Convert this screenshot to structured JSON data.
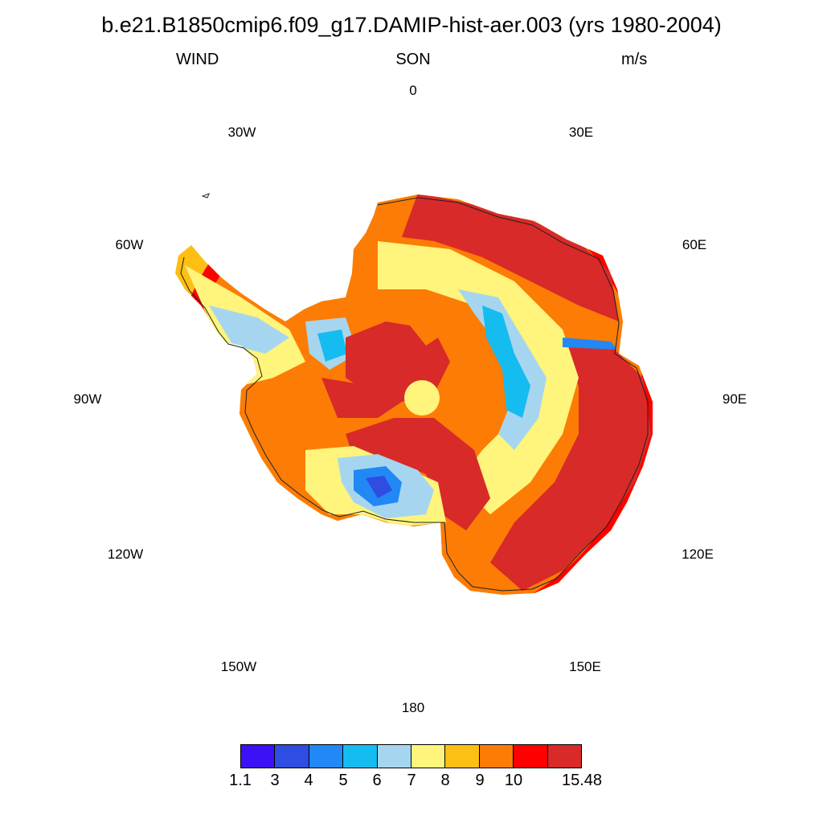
{
  "title": "b.e21.B1850cmip6.f09_g17.DAMIP-hist-aer.003 (yrs 1980-2004)",
  "subtitle_left": "WIND",
  "subtitle_center": "SON",
  "subtitle_right": "m/s",
  "longitude_labels": [
    "0",
    "30E",
    "60E",
    "90E",
    "120E",
    "150E",
    "180",
    "150W",
    "120W",
    "90W",
    "60W",
    "30W"
  ],
  "colorbar": {
    "colors": [
      "#3d11f5",
      "#2f4de0",
      "#2188f5",
      "#15bcf0",
      "#a6d6ef",
      "#fff47c",
      "#fdbf14",
      "#fc7c05",
      "#fd0000",
      "#d82a28"
    ],
    "labels": [
      "1.1",
      "3",
      "4",
      "5",
      "6",
      "7",
      "8",
      "9",
      "10",
      "15.48"
    ]
  },
  "map": {
    "projection": "south polar stereographic",
    "region": "Antarctica",
    "variable": "WIND",
    "units": "m/s"
  }
}
